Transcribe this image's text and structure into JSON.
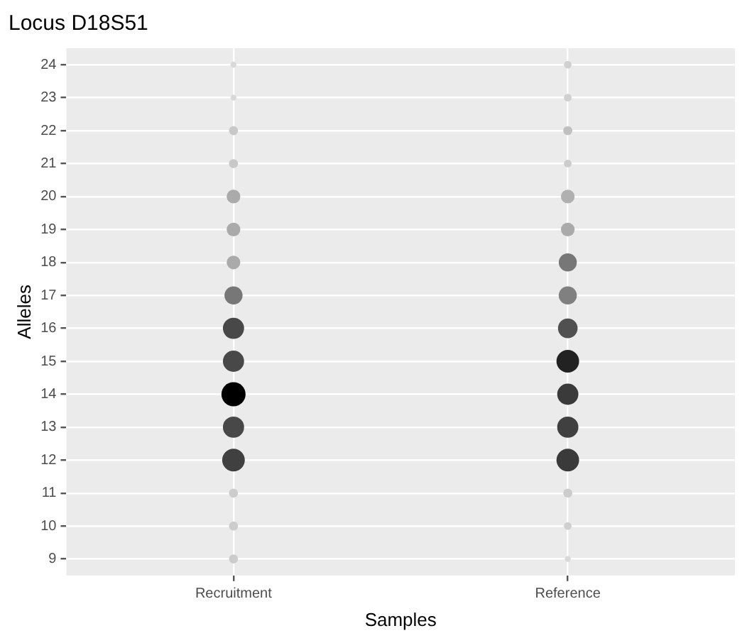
{
  "chart_data": {
    "type": "bubble",
    "title": "Locus D18S51",
    "xlabel": "Samples",
    "ylabel": "Alleles",
    "categories": [
      "Recruitment",
      "Reference"
    ],
    "ylim": [
      8.5,
      24.5
    ],
    "yticks": [
      9,
      10,
      11,
      12,
      13,
      14,
      15,
      16,
      17,
      18,
      19,
      20,
      21,
      22,
      23,
      24
    ],
    "grid": true,
    "legend": false,
    "series": [
      {
        "x": [
          "Recruitment",
          "Recruitment",
          "Recruitment",
          "Recruitment",
          "Recruitment",
          "Recruitment",
          "Recruitment",
          "Recruitment",
          "Recruitment",
          "Recruitment",
          "Recruitment",
          "Recruitment",
          "Recruitment",
          "Recruitment",
          "Recruitment",
          "Recruitment"
        ],
        "values": [
          9,
          10,
          11,
          12,
          13,
          14,
          15,
          16,
          17,
          18,
          19,
          20,
          21,
          22,
          23,
          24
        ],
        "sizes": [
          0.14,
          0.14,
          0.14,
          0.88,
          0.77,
          1,
          0.77,
          0.77,
          0.56,
          0.32,
          0.32,
          0.32,
          0.14,
          0.14,
          0.06,
          0.06
        ],
        "colors": [
          "#cccccc",
          "#cccccc",
          "#cccccc",
          "#404040",
          "#484848",
          "#000000",
          "#484848",
          "#484848",
          "#777777",
          "#aaaaaa",
          "#aaaaaa",
          "#aaaaaa",
          "#c8c8c8",
          "#c8c8c8",
          "#d8d8d8",
          "#d8d8d8"
        ]
      },
      {
        "x": [
          "Reference",
          "Reference",
          "Reference",
          "Reference",
          "Reference",
          "Reference",
          "Reference",
          "Reference",
          "Reference",
          "Reference",
          "Reference",
          "Reference",
          "Reference",
          "Reference",
          "Reference",
          "Reference"
        ],
        "values": [
          9,
          10,
          11,
          12,
          13,
          14,
          15,
          16,
          17,
          18,
          19,
          20,
          21,
          22,
          23,
          24
        ],
        "sizes": [
          0.06,
          0.1,
          0.14,
          0.88,
          0.77,
          0.77,
          0.88,
          0.66,
          0.56,
          0.56,
          0.32,
          0.32,
          0.1,
          0.14,
          0.1,
          0.1
        ],
        "colors": [
          "#d8d8d8",
          "#cfcfcf",
          "#cccccc",
          "#3a3a3a",
          "#404040",
          "#3a3a3a",
          "#222222",
          "#505050",
          "#808080",
          "#777777",
          "#aaaaaa",
          "#b0b0b0",
          "#cccccc",
          "#c0c0c0",
          "#d0d0d0",
          "#d0d0d0"
        ]
      }
    ]
  }
}
